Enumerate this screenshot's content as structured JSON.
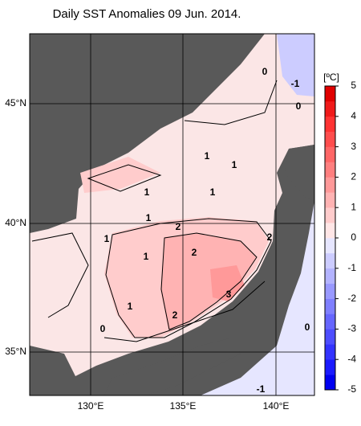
{
  "map": {
    "title": "Daily SST Anomalies 09 Jun. 2014.",
    "lat_labels": [
      "45°N",
      "40°N",
      "35°N"
    ],
    "lon_labels": [
      "130°E",
      "135°E",
      "140°E"
    ],
    "colorbar": {
      "unit": "[ºC]",
      "lim": [
        -5,
        5
      ],
      "ticks": [
        5,
        4,
        3,
        2,
        1,
        0,
        -1,
        -2,
        -3,
        -4,
        -5
      ],
      "colors": [
        "#0000f0",
        "#1a1aff",
        "#3333ff",
        "#4d4dff",
        "#6666ff",
        "#7f7fff",
        "#9999ff",
        "#b3b3ff",
        "#ccccff",
        "#e6e6ff",
        "#ffe6e6",
        "#ffcccc",
        "#ffb3b3",
        "#ff9999",
        "#ff7f7f",
        "#ff6666",
        "#ff4d4d",
        "#ff3333",
        "#f01a1a",
        "#e00000"
      ]
    },
    "contour_labels": [
      0,
      -1,
      0,
      1,
      1,
      1,
      1,
      1,
      2,
      1,
      2,
      1,
      2,
      3,
      1,
      2,
      0,
      0,
      -1
    ]
  }
}
